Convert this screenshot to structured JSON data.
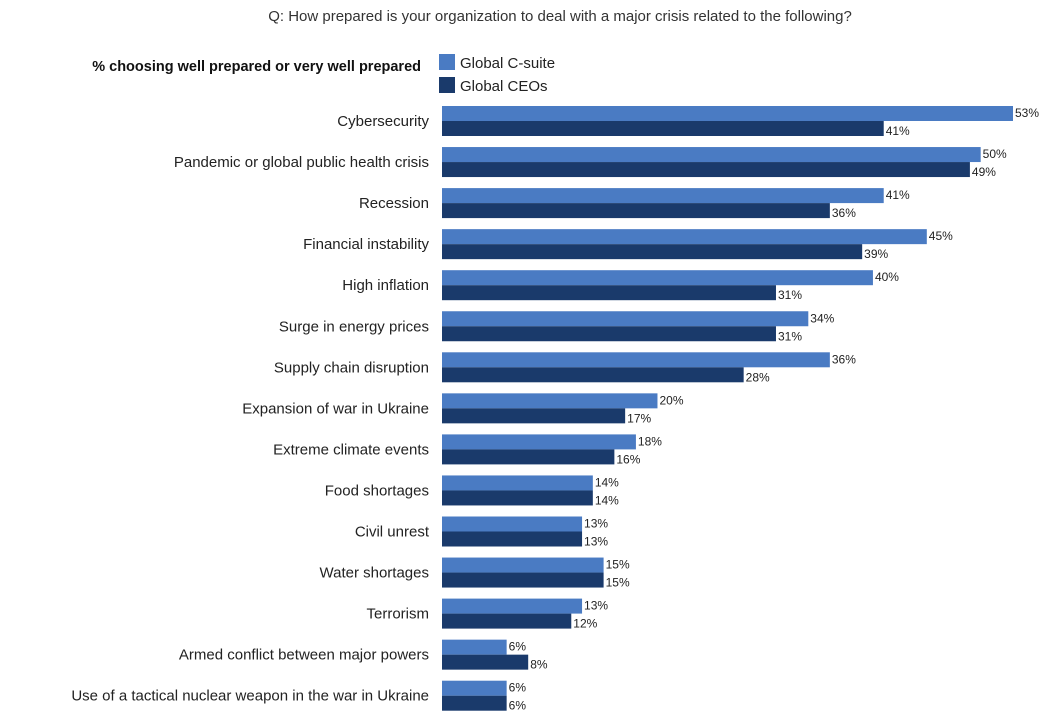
{
  "chart_data": {
    "type": "bar",
    "orientation": "horizontal",
    "title": "Q: How prepared is your organization to deal with a major crisis related to the following?",
    "subtitle": "% choosing well prepared or very well prepared",
    "value_suffix": "%",
    "xlim": [
      0,
      53
    ],
    "grid": false,
    "legend_position": "top",
    "categories": [
      "Cybersecurity",
      "Pandemic or global public health crisis",
      "Recession",
      "Financial instability",
      "High inflation",
      "Surge in energy prices",
      "Supply chain disruption",
      "Expansion of war in Ukraine",
      "Extreme climate events",
      "Food shortages",
      "Civil unrest",
      "Water shortages",
      "Terrorism",
      "Armed conflict between major powers",
      "Use of a tactical nuclear weapon in the war in Ukraine"
    ],
    "series": [
      {
        "name": "Global C-suite",
        "color": "#4a7bc3",
        "values": [
          53,
          50,
          41,
          45,
          40,
          34,
          36,
          20,
          18,
          14,
          13,
          15,
          13,
          6,
          6
        ]
      },
      {
        "name": "Global CEOs",
        "color": "#1a3a6b",
        "values": [
          41,
          49,
          36,
          39,
          31,
          31,
          28,
          17,
          16,
          14,
          13,
          15,
          12,
          8,
          6
        ]
      }
    ]
  }
}
